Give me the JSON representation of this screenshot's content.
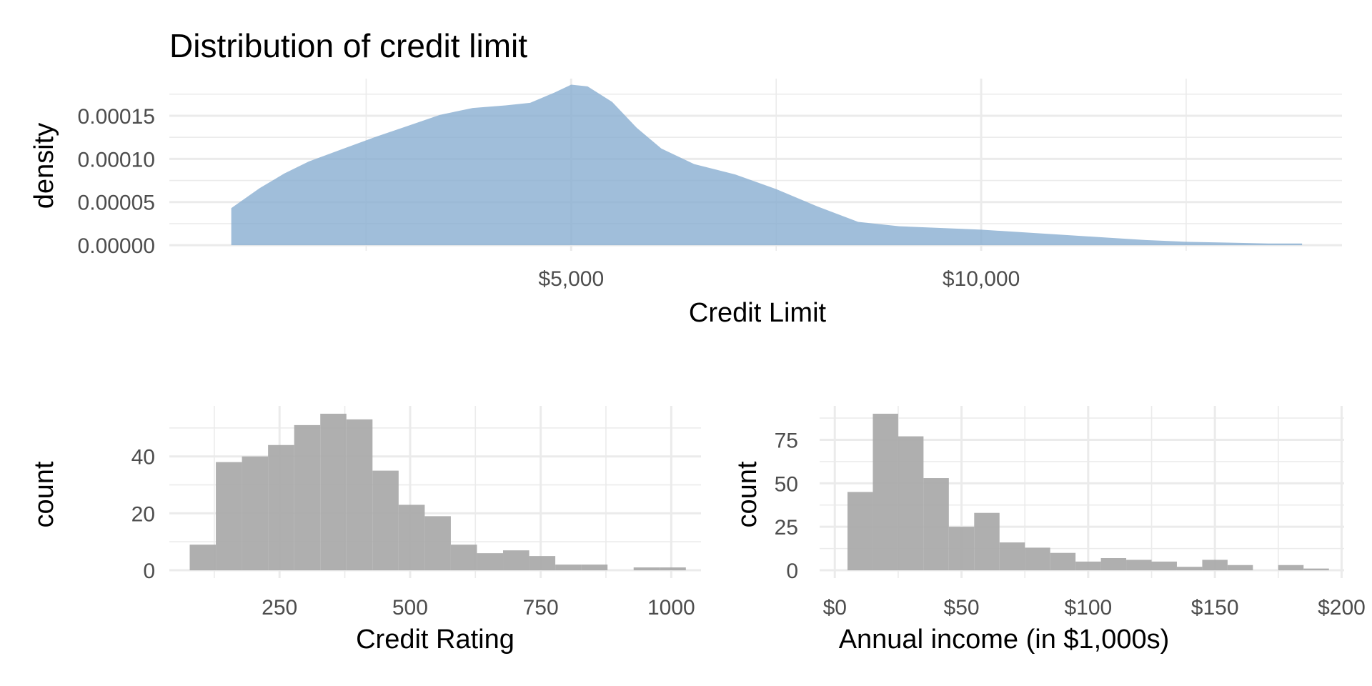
{
  "chart_data": [
    {
      "type": "area",
      "title": "Distribution of credit limit",
      "xlabel": "Credit Limit",
      "ylabel": "density",
      "fill_color": "#88aed1",
      "xlim": [
        100,
        14400
      ],
      "ylim": [
        -6.5e-06,
        0.000193
      ],
      "x_ticks": [
        5000,
        10000
      ],
      "x_tick_labels": [
        "$5,000",
        "$10,000"
      ],
      "x_minor_ticks": [
        2500,
        7500,
        12500
      ],
      "y_ticks": [
        0,
        5e-05,
        0.0001,
        0.00015
      ],
      "y_tick_labels": [
        "0.00000",
        "0.00005",
        "0.00010",
        "0.00015"
      ],
      "y_minor_ticks": [
        2.5e-05,
        7.5e-05,
        0.000125,
        0.000175
      ],
      "x": [
        855,
        1200,
        1500,
        1800,
        2200,
        2600,
        3000,
        3400,
        3800,
        4200,
        4500,
        4800,
        5000,
        5200,
        5500,
        5800,
        6100,
        6500,
        7000,
        7500,
        8000,
        8500,
        9000,
        9500,
        10000,
        10500,
        11000,
        11500,
        12000,
        12500,
        13000,
        13500,
        13913
      ],
      "y": [
        4.3e-05,
        6.6e-05,
        8.3e-05,
        9.7e-05,
        0.000111,
        0.000125,
        0.000138,
        0.000151,
        0.000159,
        0.000162,
        0.000165,
        0.000177,
        0.000186,
        0.000184,
        0.000166,
        0.000136,
        0.000112,
        9.4e-05,
        8.2e-05,
        6.5e-05,
        4.5e-05,
        2.7e-05,
        2.2e-05,
        2e-05,
        1.8e-05,
        1.5e-05,
        1.2e-05,
        9e-06,
        6e-06,
        4e-06,
        3e-06,
        2e-06,
        2e-06
      ]
    },
    {
      "type": "bar",
      "xlabel": "Credit Rating",
      "ylabel": "count",
      "fill_color": "#ababab",
      "xlim": [
        39,
        1057
      ],
      "ylim": [
        -2.75,
        57.75
      ],
      "x_ticks": [
        250,
        500,
        750,
        1000
      ],
      "x_tick_labels": [
        "250",
        "500",
        "750",
        "1000"
      ],
      "x_minor_ticks": [
        125,
        375,
        625,
        875
      ],
      "y_ticks": [
        0,
        20,
        40
      ],
      "y_tick_labels": [
        "0",
        "20",
        "40"
      ],
      "y_minor_ticks": [
        10,
        30,
        50
      ],
      "bin_edges": [
        78,
        128,
        178,
        228,
        278,
        328,
        378,
        428,
        478,
        528,
        578,
        628,
        678,
        728,
        778,
        828,
        878,
        928,
        978,
        1028
      ],
      "values": [
        9,
        38,
        40,
        44,
        51,
        55,
        53,
        35,
        23,
        19,
        9,
        6,
        7,
        5,
        2,
        2,
        0,
        1,
        1
      ]
    },
    {
      "type": "bar",
      "xlabel": "Annual income (in $1,000s)",
      "ylabel": "count",
      "fill_color": "#ababab",
      "xlim": [
        -6,
        201
      ],
      "ylim": [
        -4.5,
        94.5
      ],
      "x_ticks": [
        0,
        50,
        100,
        150,
        200
      ],
      "x_tick_labels": [
        "$0",
        "$50",
        "$100",
        "$150",
        "$200"
      ],
      "x_minor_ticks": [
        25,
        75,
        125,
        175
      ],
      "y_ticks": [
        0,
        25,
        50,
        75
      ],
      "y_tick_labels": [
        "0",
        "25",
        "50",
        "75"
      ],
      "y_minor_ticks": [
        12.5,
        37.5,
        62.5,
        87.5
      ],
      "bin_edges": [
        5,
        15,
        25,
        35,
        45,
        55,
        65,
        75,
        85,
        95,
        105,
        115,
        125,
        135,
        145,
        155,
        165,
        175,
        185,
        195
      ],
      "values": [
        45,
        90,
        77,
        53,
        25,
        33,
        16,
        13,
        10,
        5,
        7,
        6,
        5,
        2,
        6,
        3,
        0,
        3,
        1
      ]
    }
  ]
}
